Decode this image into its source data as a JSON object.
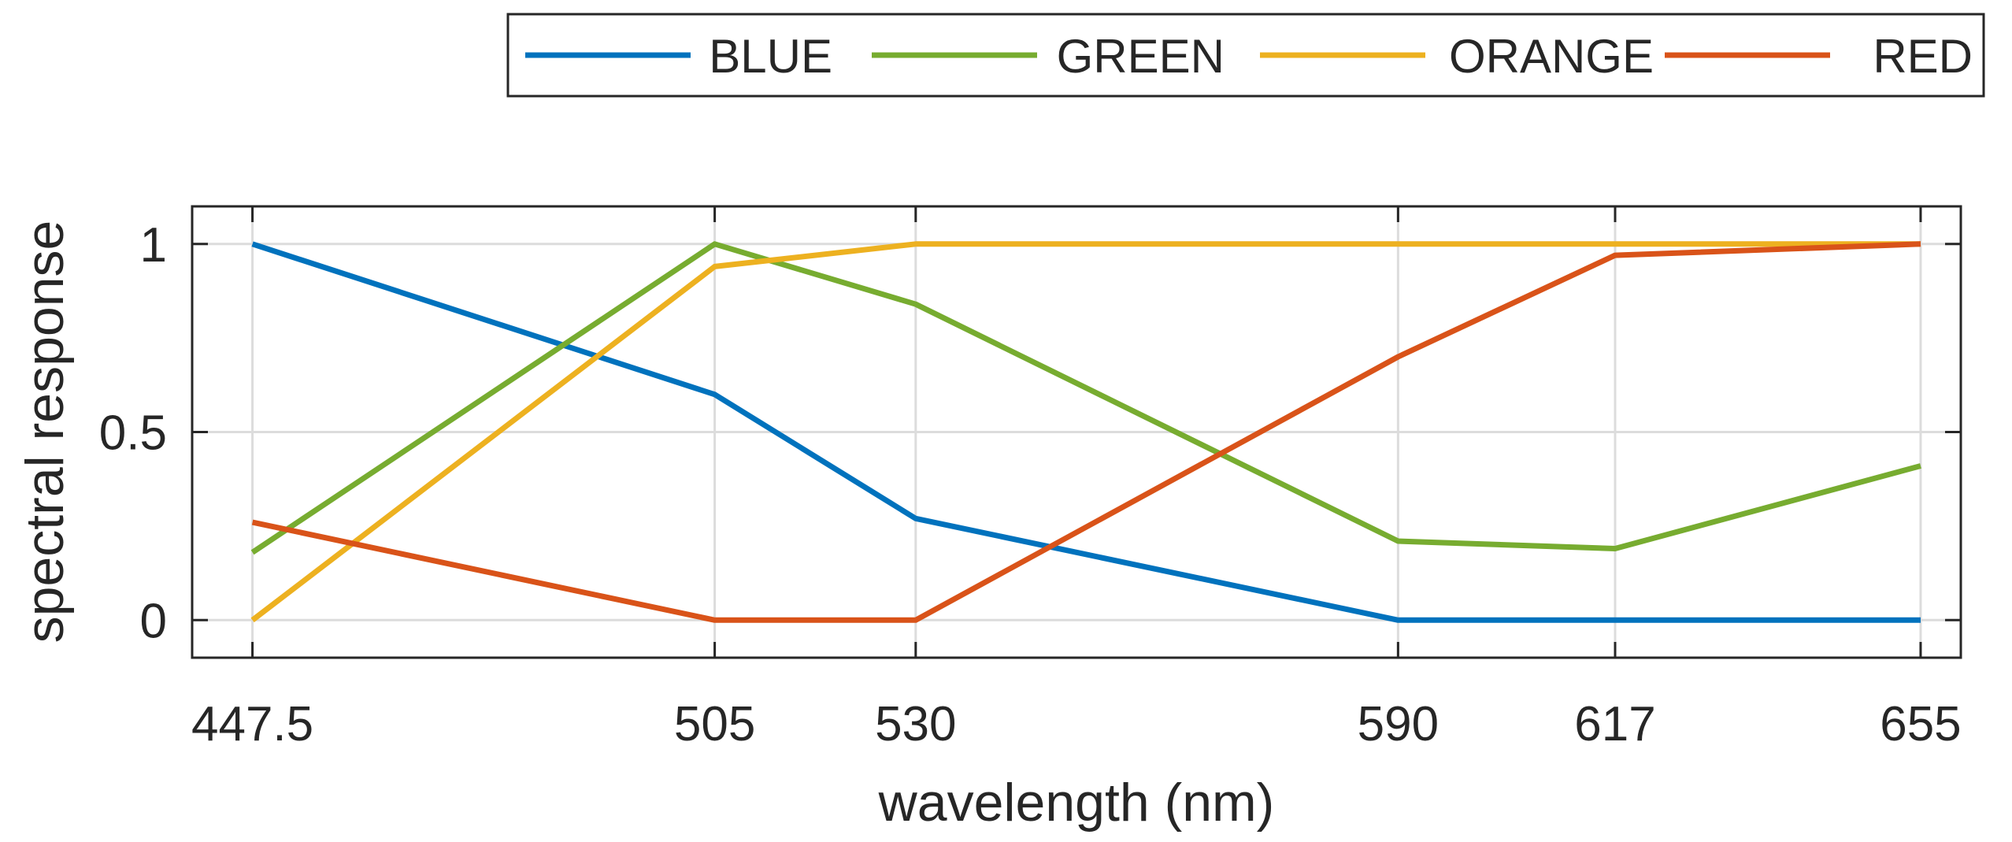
{
  "chart_data": {
    "type": "line",
    "title": "",
    "xlabel": "wavelength (nm)",
    "ylabel": "spectral response",
    "x": [
      447.5,
      505,
      530,
      590,
      617,
      655
    ],
    "x_tick_labels": [
      "447.5",
      "505",
      "530",
      "590",
      "617",
      "655"
    ],
    "y_ticks": [
      0,
      0.5,
      1
    ],
    "y_tick_labels": [
      "0",
      "0.5",
      "1"
    ],
    "xlim": [
      440,
      660
    ],
    "ylim": [
      -0.1,
      1.1
    ],
    "grid": true,
    "legend_position": "top-right, outside",
    "series": [
      {
        "name": "BLUE",
        "color": "#0072BD",
        "values": [
          1.0,
          0.6,
          0.27,
          0.0,
          0.0,
          0.0
        ]
      },
      {
        "name": "GREEN",
        "color": "#77AC30",
        "values": [
          0.18,
          1.0,
          0.84,
          0.21,
          0.19,
          0.41
        ]
      },
      {
        "name": "ORANGE",
        "color": "#EDB120",
        "values": [
          0.0,
          0.94,
          1.0,
          1.0,
          1.0,
          1.0
        ]
      },
      {
        "name": "RED",
        "color": "#D95319",
        "values": [
          0.26,
          0.0,
          0.0,
          0.7,
          0.97,
          1.0
        ]
      }
    ]
  }
}
